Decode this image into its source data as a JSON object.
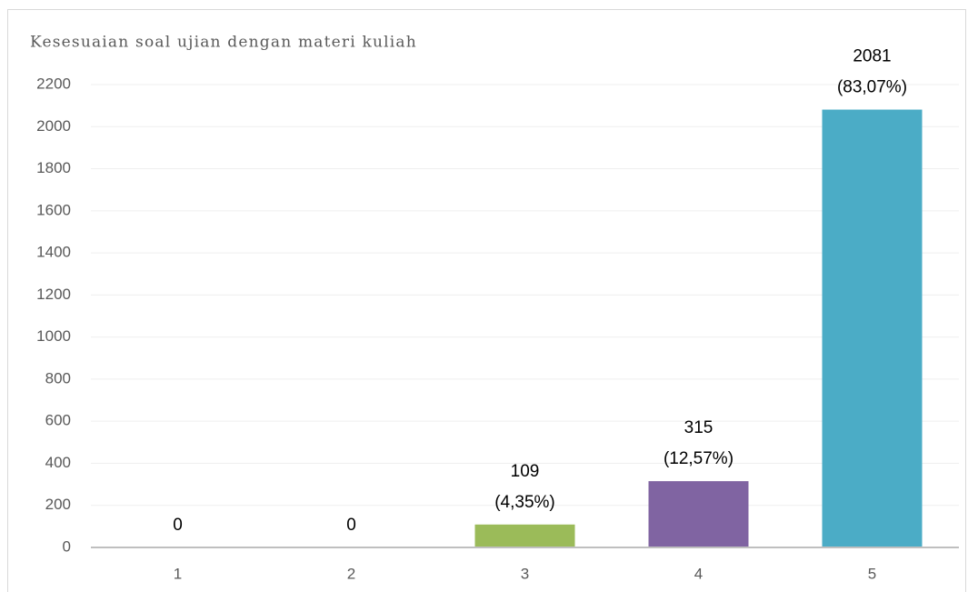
{
  "chart_data": {
    "type": "bar",
    "title": "Kesesuaian soal ujian dengan materi kuliah",
    "categories": [
      "1",
      "2",
      "3",
      "4",
      "5"
    ],
    "values": [
      0,
      0,
      109,
      315,
      2081
    ],
    "value_labels": [
      [
        "0"
      ],
      [
        "0"
      ],
      [
        "109",
        "(4,35%)"
      ],
      [
        "315",
        "(12,57%)"
      ],
      [
        "2081",
        "(83,07%)"
      ]
    ],
    "colors": [
      "#9bbb59",
      "#9bbb59",
      "#9bbb59",
      "#8064a2",
      "#4bacc6"
    ],
    "ylim": [
      0,
      2200
    ],
    "yticks": [
      0,
      200,
      400,
      600,
      800,
      1000,
      1200,
      1400,
      1600,
      1800,
      2000,
      2200
    ],
    "grid": true
  }
}
